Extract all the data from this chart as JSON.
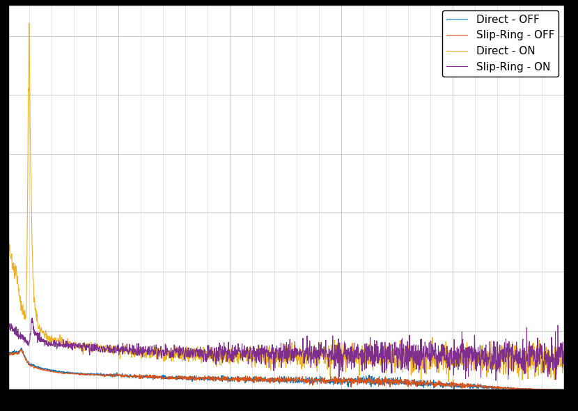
{
  "colors": {
    "direct_off": "#0072bd",
    "slipring_off": "#d95319",
    "direct_on": "#edb120",
    "slipring_on": "#7e2f8e"
  },
  "legend_labels": [
    "Direct - OFF",
    "Slip-Ring - OFF",
    "Direct - ON",
    "Slip-Ring - ON"
  ],
  "background_color": "#ffffff",
  "grid_color": "#c8c8c8",
  "figsize": [
    8.3,
    5.9
  ],
  "dpi": 100
}
